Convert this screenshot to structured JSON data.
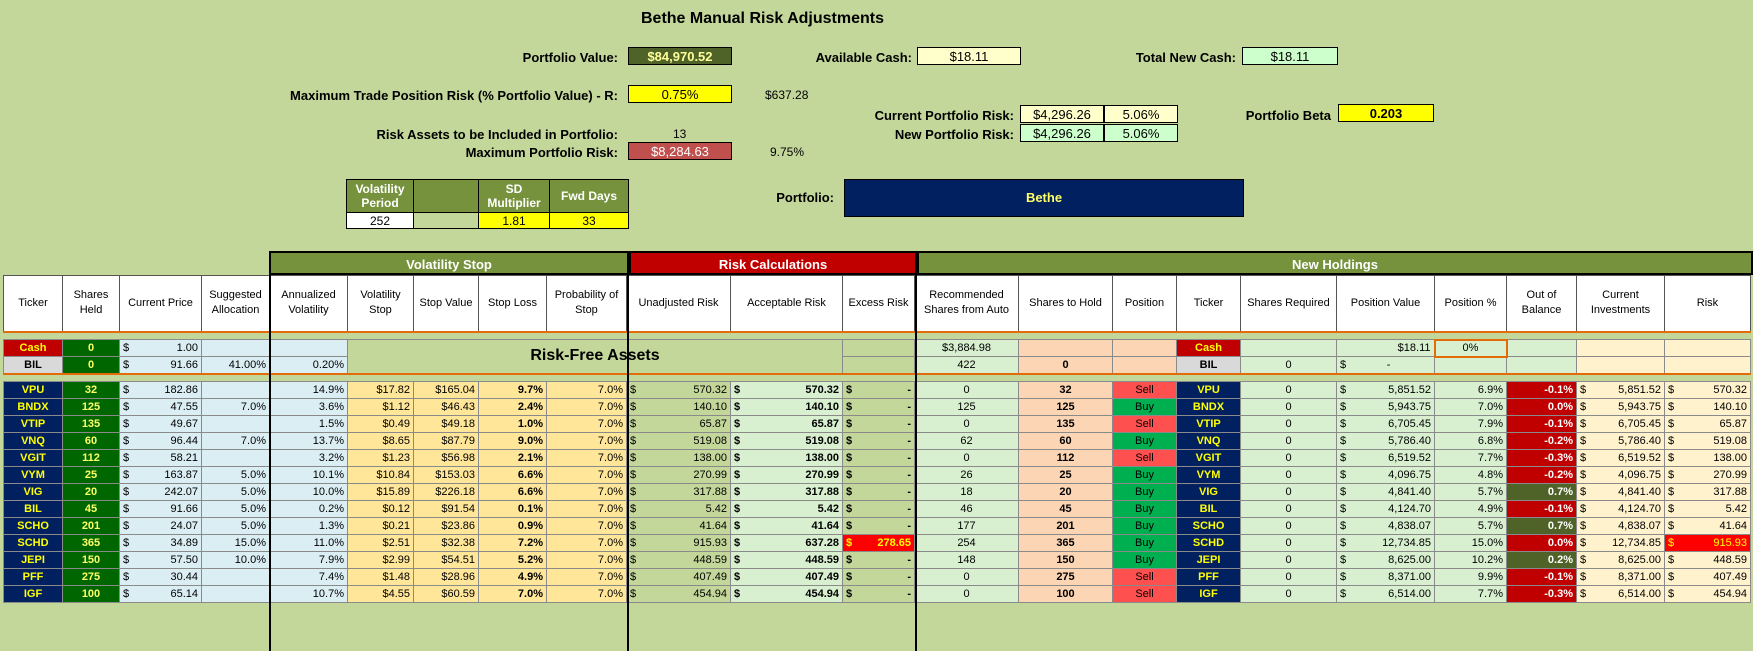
{
  "title": "Bethe Manual Risk Adjustments",
  "summary": {
    "portfolio_value_label": "Portfolio Value:",
    "portfolio_value": "$84,970.52",
    "available_cash_label": "Available Cash:",
    "available_cash": "$18.11",
    "total_new_cash_label": "Total New Cash:",
    "total_new_cash": "$18.11",
    "max_trade_risk_label": "Maximum Trade Position Risk (% Portfolio Value) - R:",
    "max_trade_risk_pct": "0.75%",
    "max_trade_risk_amt": "$637.28",
    "current_risk_label": "Current Portfolio Risk:",
    "current_risk_amt": "$4,296.26",
    "current_risk_pct": "5.06%",
    "new_risk_label": "New Portfolio Risk:",
    "new_risk_amt": "$4,296.26",
    "new_risk_pct": "5.06%",
    "beta_label": "Portfolio Beta",
    "beta": "0.203",
    "risk_assets_label": "Risk Assets to be Included in Portfolio:",
    "risk_assets": "13",
    "max_portfolio_risk_label": "Maximum Portfolio Risk:",
    "max_portfolio_risk_amt": "$8,284.63",
    "max_portfolio_risk_pct": "9.75%",
    "portfolio_label": "Portfolio:",
    "portfolio_name": "Bethe"
  },
  "vol_params": {
    "h1": "Volatility Period",
    "h3": "SD Multiplier",
    "h4": "Fwd Days",
    "period": "252",
    "multiplier": "1.81",
    "fwd_days": "33"
  },
  "sections": {
    "vol_stop": "Volatility Stop",
    "risk_calc": "Risk Calculations",
    "new_holdings": "New Holdings",
    "risk_free": "Risk-Free Assets"
  },
  "headers": [
    "Ticker",
    "Shares Held",
    "Current Price",
    "Suggested Allocation",
    "Annualized Volatility",
    "Volatility Stop",
    "Stop Value",
    "Stop Loss",
    "Probability of Stop",
    "Unadjusted Risk",
    "Acceptable Risk",
    "Excess Risk",
    "Recommended Shares from Auto",
    "Shares to Hold",
    "Position",
    "Ticker",
    "Shares Required",
    "Position Value",
    "Position %",
    "Out of Balance",
    "Current Investments",
    "Risk"
  ],
  "cash_row": {
    "ticker": "Cash",
    "shares": "0",
    "price": "1.00",
    "recommended": "$3,884.98",
    "ticker2": "Cash",
    "pos_value": "$18.11",
    "pos_pct": "0%"
  },
  "bil_row": {
    "ticker": "BIL",
    "shares": "0",
    "price": "91.66",
    "alloc": "41.00%",
    "vol": "0.20%",
    "recommended": "422",
    "hold": "0",
    "ticker2": "BIL",
    "required": "0",
    "pos_value": "-"
  },
  "rows": [
    {
      "t": "VPU",
      "sh": "32",
      "px": "182.86",
      "al": "",
      "av": "14.9%",
      "vs": "$17.82",
      "sv": "$165.04",
      "sl": "9.7%",
      "ps": "7.0%",
      "ur": "570.32",
      "ar": "570.32",
      "er": "-",
      "rec": "0",
      "hold": "32",
      "pos": "Sell",
      "req": "0",
      "pv": "5,851.52",
      "pp": "6.9%",
      "ob": "-0.1%",
      "ci": "5,851.52",
      "rk": "570.32"
    },
    {
      "t": "BNDX",
      "sh": "125",
      "px": "47.55",
      "al": "7.0%",
      "av": "3.6%",
      "vs": "$1.12",
      "sv": "$46.43",
      "sl": "2.4%",
      "ps": "7.0%",
      "ur": "140.10",
      "ar": "140.10",
      "er": "-",
      "rec": "125",
      "hold": "125",
      "pos": "Buy",
      "req": "0",
      "pv": "5,943.75",
      "pp": "7.0%",
      "ob": "0.0%",
      "ci": "5,943.75",
      "rk": "140.10"
    },
    {
      "t": "VTIP",
      "sh": "135",
      "px": "49.67",
      "al": "",
      "av": "1.5%",
      "vs": "$0.49",
      "sv": "$49.18",
      "sl": "1.0%",
      "ps": "7.0%",
      "ur": "65.87",
      "ar": "65.87",
      "er": "-",
      "rec": "0",
      "hold": "135",
      "pos": "Sell",
      "req": "0",
      "pv": "6,705.45",
      "pp": "7.9%",
      "ob": "-0.1%",
      "ci": "6,705.45",
      "rk": "65.87"
    },
    {
      "t": "VNQ",
      "sh": "60",
      "px": "96.44",
      "al": "7.0%",
      "av": "13.7%",
      "vs": "$8.65",
      "sv": "$87.79",
      "sl": "9.0%",
      "ps": "7.0%",
      "ur": "519.08",
      "ar": "519.08",
      "er": "-",
      "rec": "62",
      "hold": "60",
      "pos": "Buy",
      "req": "0",
      "pv": "5,786.40",
      "pp": "6.8%",
      "ob": "-0.2%",
      "ci": "5,786.40",
      "rk": "519.08"
    },
    {
      "t": "VGIT",
      "sh": "112",
      "px": "58.21",
      "al": "",
      "av": "3.2%",
      "vs": "$1.23",
      "sv": "$56.98",
      "sl": "2.1%",
      "ps": "7.0%",
      "ur": "138.00",
      "ar": "138.00",
      "er": "-",
      "rec": "0",
      "hold": "112",
      "pos": "Sell",
      "req": "0",
      "pv": "6,519.52",
      "pp": "7.7%",
      "ob": "-0.3%",
      "ci": "6,519.52",
      "rk": "138.00"
    },
    {
      "t": "VYM",
      "sh": "25",
      "px": "163.87",
      "al": "5.0%",
      "av": "10.1%",
      "vs": "$10.84",
      "sv": "$153.03",
      "sl": "6.6%",
      "ps": "7.0%",
      "ur": "270.99",
      "ar": "270.99",
      "er": "-",
      "rec": "26",
      "hold": "25",
      "pos": "Buy",
      "req": "0",
      "pv": "4,096.75",
      "pp": "4.8%",
      "ob": "-0.2%",
      "ci": "4,096.75",
      "rk": "270.99"
    },
    {
      "t": "VIG",
      "sh": "20",
      "px": "242.07",
      "al": "5.0%",
      "av": "10.0%",
      "vs": "$15.89",
      "sv": "$226.18",
      "sl": "6.6%",
      "ps": "7.0%",
      "ur": "317.88",
      "ar": "317.88",
      "er": "-",
      "rec": "18",
      "hold": "20",
      "pos": "Buy",
      "req": "0",
      "pv": "4,841.40",
      "pp": "5.7%",
      "ob": "0.7%",
      "ci": "4,841.40",
      "rk": "317.88"
    },
    {
      "t": "BIL",
      "sh": "45",
      "px": "91.66",
      "al": "5.0%",
      "av": "0.2%",
      "vs": "$0.12",
      "sv": "$91.54",
      "sl": "0.1%",
      "ps": "7.0%",
      "ur": "5.42",
      "ar": "5.42",
      "er": "-",
      "rec": "46",
      "hold": "45",
      "pos": "Buy",
      "req": "0",
      "pv": "4,124.70",
      "pp": "4.9%",
      "ob": "-0.1%",
      "ci": "4,124.70",
      "rk": "5.42"
    },
    {
      "t": "SCHO",
      "sh": "201",
      "px": "24.07",
      "al": "5.0%",
      "av": "1.3%",
      "vs": "$0.21",
      "sv": "$23.86",
      "sl": "0.9%",
      "ps": "7.0%",
      "ur": "41.64",
      "ar": "41.64",
      "er": "-",
      "rec": "177",
      "hold": "201",
      "pos": "Buy",
      "req": "0",
      "pv": "4,838.07",
      "pp": "5.7%",
      "ob": "0.7%",
      "ci": "4,838.07",
      "rk": "41.64"
    },
    {
      "t": "SCHD",
      "sh": "365",
      "px": "34.89",
      "al": "15.0%",
      "av": "11.0%",
      "vs": "$2.51",
      "sv": "$32.38",
      "sl": "7.2%",
      "ps": "7.0%",
      "ur": "915.93",
      "ar": "637.28",
      "er": "278.65",
      "rec": "254",
      "hold": "365",
      "pos": "Buy",
      "req": "0",
      "pv": "12,734.85",
      "pp": "15.0%",
      "ob": "0.0%",
      "ci": "12,734.85",
      "rk": "915.93"
    },
    {
      "t": "JEPI",
      "sh": "150",
      "px": "57.50",
      "al": "10.0%",
      "av": "7.9%",
      "vs": "$2.99",
      "sv": "$54.51",
      "sl": "5.2%",
      "ps": "7.0%",
      "ur": "448.59",
      "ar": "448.59",
      "er": "-",
      "rec": "148",
      "hold": "150",
      "pos": "Buy",
      "req": "0",
      "pv": "8,625.00",
      "pp": "10.2%",
      "ob": "0.2%",
      "ci": "8,625.00",
      "rk": "448.59"
    },
    {
      "t": "PFF",
      "sh": "275",
      "px": "30.44",
      "al": "",
      "av": "7.4%",
      "vs": "$1.48",
      "sv": "$28.96",
      "sl": "4.9%",
      "ps": "7.0%",
      "ur": "407.49",
      "ar": "407.49",
      "er": "-",
      "rec": "0",
      "hold": "275",
      "pos": "Sell",
      "req": "0",
      "pv": "8,371.00",
      "pp": "9.9%",
      "ob": "-0.1%",
      "ci": "8,371.00",
      "rk": "407.49"
    },
    {
      "t": "IGF",
      "sh": "100",
      "px": "65.14",
      "al": "",
      "av": "10.7%",
      "vs": "$4.55",
      "sv": "$60.59",
      "sl": "7.0%",
      "ps": "7.0%",
      "ur": "454.94",
      "ar": "454.94",
      "er": "-",
      "rec": "0",
      "hold": "100",
      "pos": "Sell",
      "req": "0",
      "pv": "6,514.00",
      "pp": "7.7%",
      "ob": "-0.3%",
      "ci": "6,514.00",
      "rk": "454.94"
    }
  ]
}
